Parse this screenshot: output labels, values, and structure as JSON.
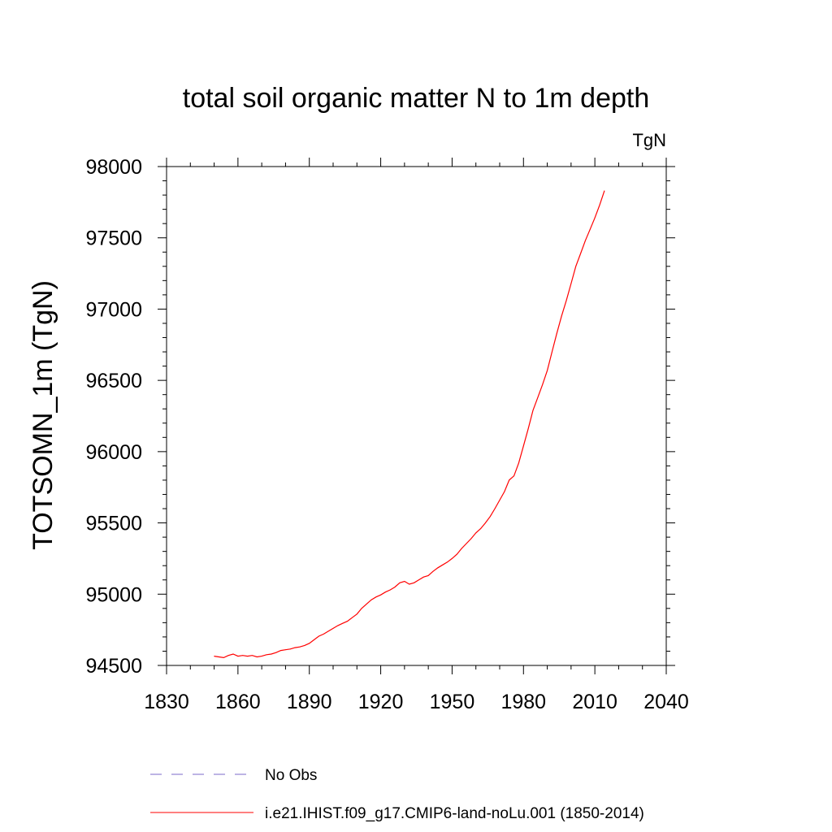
{
  "chart_data": {
    "type": "line",
    "title": "total soil organic matter N to 1m depth",
    "units_label": "TgN",
    "ylabel": "TOTSOMN_1m  (TgN)",
    "xlabel": "",
    "xlim": [
      1830,
      2040
    ],
    "ylim": [
      94500,
      98000
    ],
    "x_ticks": [
      1830,
      1860,
      1890,
      1920,
      1950,
      1980,
      2010,
      2040
    ],
    "y_ticks": [
      94500,
      95000,
      95500,
      96000,
      96500,
      97000,
      97500,
      98000
    ],
    "grid": false,
    "legend_position": "bottom",
    "series": [
      {
        "name": "No Obs",
        "color": "#7b68c8",
        "dash": "dashed",
        "x": [],
        "y": []
      },
      {
        "name": "i.e21.IHIST.f09_g17.CMIP6-land-noLu.001 (1850-2014)",
        "color": "#ff0000",
        "dash": "solid",
        "x": [
          1850,
          1852,
          1854,
          1856,
          1858,
          1860,
          1862,
          1864,
          1866,
          1868,
          1870,
          1872,
          1874,
          1876,
          1878,
          1880,
          1882,
          1884,
          1886,
          1888,
          1890,
          1892,
          1894,
          1896,
          1898,
          1900,
          1902,
          1904,
          1906,
          1908,
          1910,
          1912,
          1914,
          1916,
          1918,
          1920,
          1922,
          1924,
          1926,
          1928,
          1930,
          1932,
          1934,
          1936,
          1938,
          1940,
          1942,
          1944,
          1946,
          1948,
          1950,
          1952,
          1954,
          1956,
          1958,
          1960,
          1962,
          1964,
          1966,
          1968,
          1970,
          1972,
          1974,
          1976,
          1978,
          1980,
          1982,
          1984,
          1986,
          1988,
          1990,
          1992,
          1994,
          1996,
          1998,
          2000,
          2002,
          2004,
          2006,
          2008,
          2010,
          2012,
          2014
        ],
        "y": [
          94565,
          94560,
          94555,
          94570,
          94580,
          94565,
          94570,
          94565,
          94570,
          94560,
          94565,
          94575,
          94580,
          94590,
          94605,
          94610,
          94615,
          94625,
          94630,
          94640,
          94655,
          94680,
          94705,
          94720,
          94740,
          94760,
          94780,
          94795,
          94810,
          94835,
          94860,
          94900,
          94930,
          94960,
          94980,
          94995,
          95015,
          95030,
          95050,
          95080,
          95090,
          95070,
          95080,
          95100,
          95120,
          95130,
          95160,
          95185,
          95205,
          95225,
          95250,
          95280,
          95320,
          95355,
          95390,
          95430,
          95460,
          95500,
          95545,
          95600,
          95660,
          95720,
          95800,
          95830,
          95920,
          96040,
          96160,
          96290,
          96380,
          96470,
          96570,
          96700,
          96830,
          96950,
          97060,
          97180,
          97300,
          97390,
          97480,
          97560,
          97640,
          97730,
          97830
        ]
      }
    ]
  }
}
